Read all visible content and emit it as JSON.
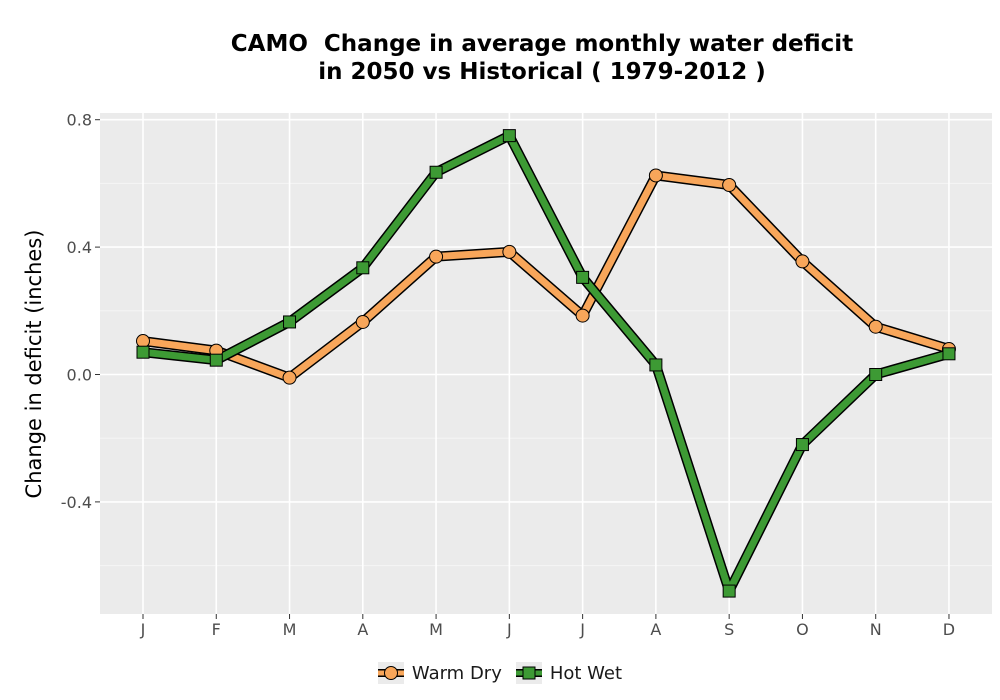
{
  "chart_data": {
    "type": "line",
    "title_line1": "CAMO  Change in average monthly water deficit",
    "title_line2": "in 2050 vs Historical ( 1979-2012 )",
    "xlabel": "",
    "ylabel": "Change in deficit (inches)",
    "categories": [
      "J",
      "F",
      "M",
      "A",
      "M",
      "J",
      "J",
      "A",
      "S",
      "O",
      "N",
      "D"
    ],
    "ylim": [
      -0.75,
      0.82
    ],
    "yticks": [
      0.8,
      0.4,
      0.0,
      -0.4
    ],
    "ytick_labels": [
      "0.8",
      "0.4",
      "0.0",
      "-0.4"
    ],
    "grid": true,
    "legend_position": "bottom",
    "series": [
      {
        "name": "Warm Dry",
        "marker": "circle",
        "color": "#F8A65A",
        "values": [
          0.105,
          0.075,
          -0.01,
          0.165,
          0.37,
          0.385,
          0.185,
          0.625,
          0.595,
          0.355,
          0.15,
          0.08
        ]
      },
      {
        "name": "Hot Wet",
        "marker": "square",
        "color": "#3D9A34",
        "values": [
          0.07,
          0.045,
          0.165,
          0.335,
          0.635,
          0.75,
          0.305,
          0.03,
          -0.68,
          -0.22,
          0.0,
          0.065
        ]
      }
    ]
  }
}
